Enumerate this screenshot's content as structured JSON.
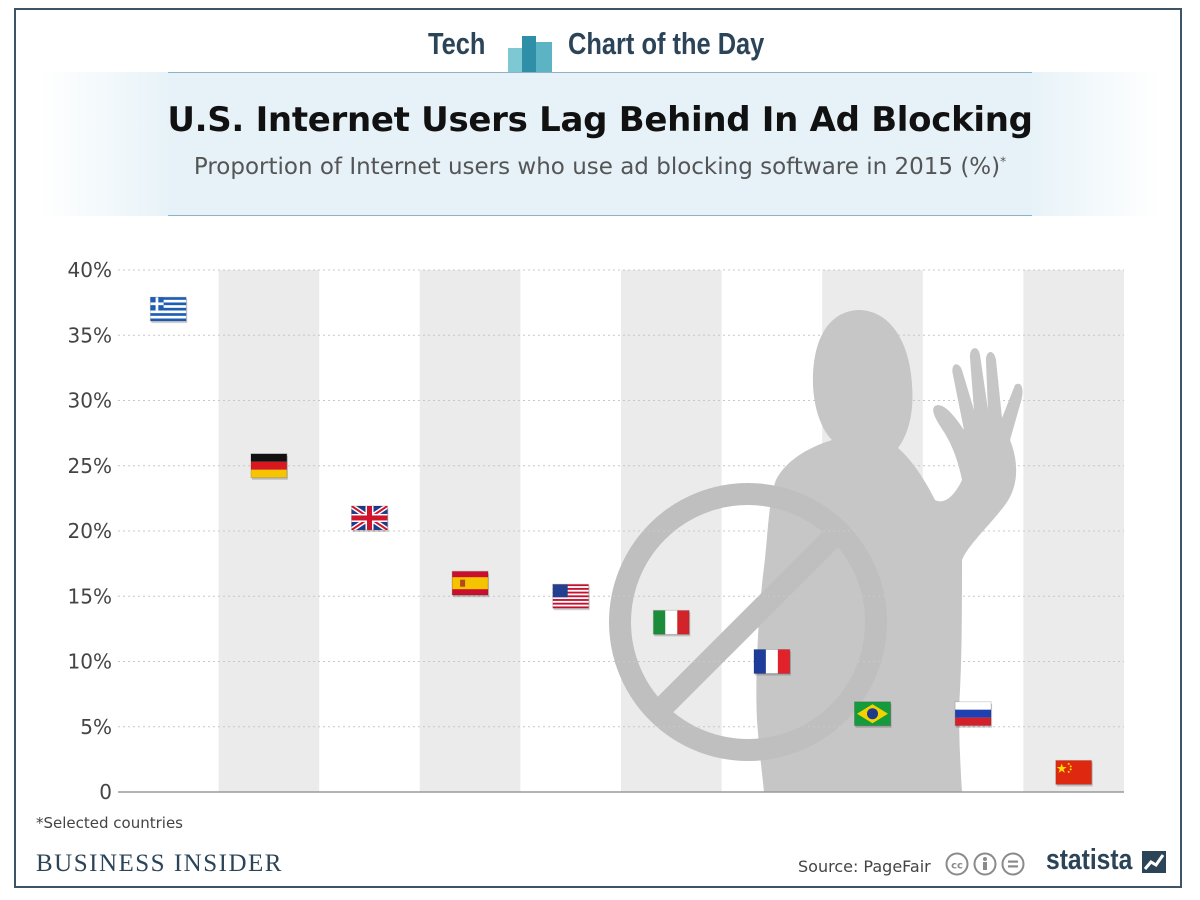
{
  "header": {
    "brand_left": "Tech",
    "brand_right": "Chart of the Day"
  },
  "chart_data": {
    "type": "scatter",
    "title": "U.S. Internet Users Lag Behind In Ad Blocking",
    "subtitle": "Proportion of Internet users who use ad blocking software in 2015 (%)",
    "subtitle_marker": "*",
    "categories": [
      "Greece",
      "Germany",
      "UK",
      "Spain",
      "USA",
      "Italy",
      "France",
      "Brazil",
      "Russia",
      "China"
    ],
    "values": [
      37,
      25,
      21,
      16,
      15,
      13,
      10,
      6,
      6,
      1.5
    ],
    "markers": [
      "greece-flag-icon",
      "germany-flag-icon",
      "uk-flag-icon",
      "spain-flag-icon",
      "usa-flag-icon",
      "italy-flag-icon",
      "france-flag-icon",
      "brazil-flag-icon",
      "russia-flag-icon",
      "china-flag-icon"
    ],
    "ylim": [
      0,
      40
    ],
    "yticks": [
      0,
      5,
      10,
      15,
      20,
      25,
      30,
      35,
      40
    ],
    "ytick_labels": [
      "0",
      "5%",
      "10%",
      "15%",
      "20%",
      "25%",
      "30%",
      "35%",
      "40%"
    ],
    "grid": true,
    "alternating_bands": true,
    "background_illustration": "woman-raising-hand-with-no-sign-icon"
  },
  "footer": {
    "footnote": "*Selected countries",
    "publisher": "BUSINESS INSIDER",
    "source": "Source: PageFair",
    "license_icons": "creative-commons-icons",
    "statista": "statista"
  },
  "colors": {
    "frame": "#3d5466",
    "brand": "#2c4458",
    "band": "#ebebeb",
    "grid": "#c8c8c8",
    "silhouette": "#c4c4c4"
  }
}
